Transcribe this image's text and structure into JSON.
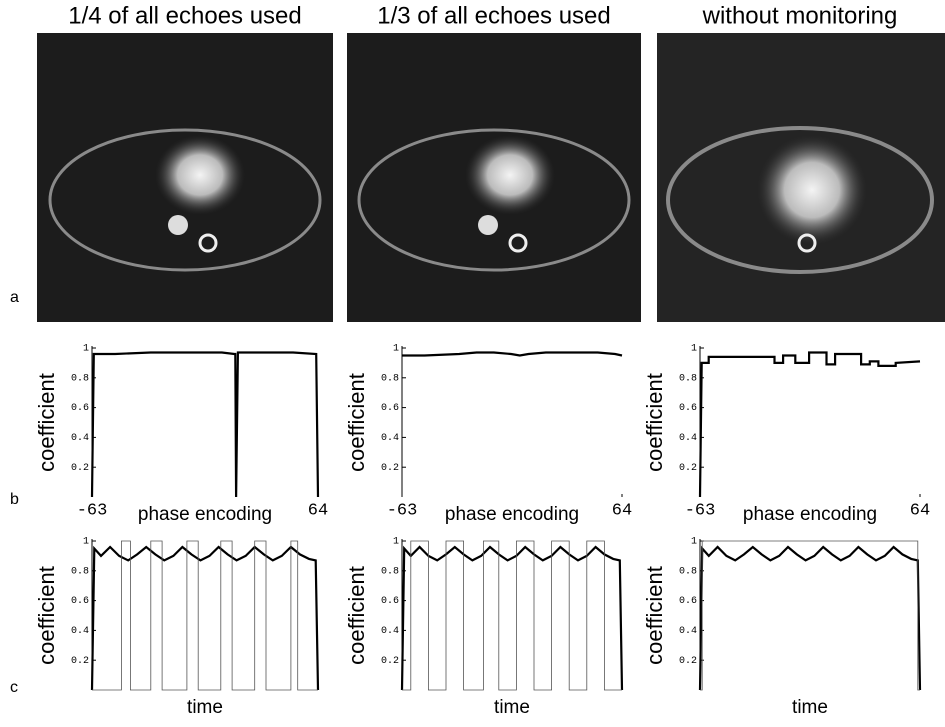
{
  "column_titles": [
    "1/4 of all echoes used",
    "1/3 of all echoes used",
    "without monitoring"
  ],
  "panel_labels": [
    "a",
    "b",
    "c"
  ],
  "chart_data": [
    {
      "type": "line",
      "ylabel": "coefficient",
      "xlabel": "phase encoding",
      "xlim": [
        -63,
        64
      ],
      "ylim": [
        0,
        1
      ],
      "xticks": [
        -63,
        64
      ],
      "yticks": [
        0.2,
        0.4,
        0.6,
        0.8,
        1
      ],
      "series": [
        {
          "color": "#000000",
          "x": [
            -63,
            -62,
            -50,
            -30,
            -10,
            10,
            17,
            17.5,
            18,
            19,
            30,
            50,
            63,
            64
          ],
          "values": [
            0,
            0.96,
            0.96,
            0.97,
            0.97,
            0.97,
            0.96,
            0.96,
            0,
            0.97,
            0.97,
            0.97,
            0.96,
            0
          ]
        }
      ]
    },
    {
      "type": "line",
      "ylabel": "coefficient",
      "xlabel": "phase encoding",
      "xlim": [
        -63,
        64
      ],
      "ylim": [
        0,
        1
      ],
      "xticks": [
        -63,
        64
      ],
      "yticks": [
        0.2,
        0.4,
        0.6,
        0.8,
        1
      ],
      "series": [
        {
          "color": "#000000",
          "x": [
            -63,
            -50,
            -30,
            -20,
            -10,
            0,
            5,
            10,
            20,
            30,
            40,
            50,
            60,
            64
          ],
          "values": [
            0.95,
            0.95,
            0.96,
            0.97,
            0.97,
            0.96,
            0.95,
            0.96,
            0.97,
            0.97,
            0.97,
            0.97,
            0.96,
            0.95
          ]
        }
      ]
    },
    {
      "type": "line",
      "ylabel": "coefficient",
      "xlabel": "phase encoding",
      "xlim": [
        -63,
        64
      ],
      "ylim": [
        0,
        1
      ],
      "xticks": [
        -63,
        64
      ],
      "yticks": [
        0.2,
        0.4,
        0.6,
        0.8,
        1
      ],
      "series": [
        {
          "color": "#000000",
          "x": [
            -63,
            -62,
            -58,
            -58,
            -20,
            -20,
            -15,
            -15,
            -8,
            -8,
            0,
            0,
            10,
            10,
            15,
            15,
            30,
            30,
            35,
            35,
            40,
            40,
            50,
            50,
            64
          ],
          "values": [
            0,
            0.9,
            0.9,
            0.94,
            0.94,
            0.9,
            0.9,
            0.95,
            0.95,
            0.9,
            0.9,
            0.97,
            0.97,
            0.89,
            0.89,
            0.96,
            0.96,
            0.89,
            0.89,
            0.91,
            0.91,
            0.88,
            0.88,
            0.9,
            0.91
          ]
        }
      ]
    },
    {
      "type": "line",
      "ylabel": "coefficient",
      "xlabel": "time",
      "xlim": [
        0,
        100
      ],
      "ylim": [
        0,
        1
      ],
      "yticks": [
        0.2,
        0.4,
        0.6,
        0.8,
        1
      ],
      "series": [
        {
          "color": "#000000",
          "x": [
            0,
            1,
            4,
            8,
            12,
            16,
            20,
            24,
            28,
            32,
            36,
            40,
            44,
            48,
            52,
            56,
            60,
            64,
            68,
            72,
            76,
            80,
            84,
            88,
            92,
            96,
            99,
            100
          ],
          "values": [
            0,
            0.95,
            0.9,
            0.96,
            0.9,
            0.87,
            0.91,
            0.96,
            0.91,
            0.87,
            0.9,
            0.96,
            0.91,
            0.87,
            0.9,
            0.96,
            0.91,
            0.87,
            0.9,
            0.96,
            0.91,
            0.87,
            0.9,
            0.96,
            0.91,
            0.88,
            0.87,
            0
          ]
        },
        {
          "color": "#555555",
          "x": [
            0,
            13,
            13,
            17,
            17,
            26,
            26,
            31,
            31,
            42,
            42,
            47,
            47,
            57,
            57,
            62,
            62,
            72,
            72,
            77,
            77,
            88,
            88,
            91,
            91,
            100
          ],
          "values": [
            0,
            0,
            1,
            1,
            0,
            0,
            1,
            1,
            0,
            0,
            1,
            1,
            0,
            0,
            1,
            1,
            0,
            0,
            1,
            1,
            0,
            0,
            1,
            1,
            0,
            0
          ]
        }
      ]
    },
    {
      "type": "line",
      "ylabel": "coefficient",
      "xlabel": "time",
      "xlim": [
        0,
        100
      ],
      "ylim": [
        0,
        1
      ],
      "yticks": [
        0.2,
        0.4,
        0.6,
        0.8,
        1
      ],
      "series": [
        {
          "color": "#000000",
          "x": [
            0,
            1,
            4,
            8,
            12,
            16,
            20,
            24,
            28,
            32,
            36,
            40,
            44,
            48,
            52,
            56,
            60,
            64,
            68,
            72,
            76,
            80,
            84,
            88,
            92,
            96,
            99,
            100
          ],
          "values": [
            0,
            0.95,
            0.9,
            0.96,
            0.9,
            0.87,
            0.91,
            0.96,
            0.91,
            0.87,
            0.9,
            0.96,
            0.91,
            0.87,
            0.9,
            0.96,
            0.91,
            0.87,
            0.9,
            0.96,
            0.91,
            0.87,
            0.9,
            0.96,
            0.91,
            0.88,
            0.87,
            0
          ]
        },
        {
          "color": "#555555",
          "x": [
            0,
            4,
            4,
            12,
            12,
            20,
            20,
            28,
            28,
            37,
            37,
            44,
            44,
            52,
            52,
            60,
            60,
            68,
            68,
            76,
            76,
            84,
            84,
            92,
            92,
            100
          ],
          "values": [
            0,
            0,
            1,
            1,
            0,
            0,
            1,
            1,
            0,
            0,
            1,
            1,
            0,
            0,
            1,
            1,
            0,
            0,
            1,
            1,
            0,
            0,
            1,
            1,
            0,
            0
          ]
        }
      ]
    },
    {
      "type": "line",
      "ylabel": "coefficient",
      "xlabel": "time",
      "xlim": [
        0,
        100
      ],
      "ylim": [
        0,
        1
      ],
      "yticks": [
        0.2,
        0.4,
        0.6,
        0.8,
        1
      ],
      "series": [
        {
          "color": "#000000",
          "x": [
            0,
            1,
            4,
            8,
            12,
            16,
            20,
            24,
            28,
            32,
            36,
            40,
            44,
            48,
            52,
            56,
            60,
            64,
            68,
            72,
            76,
            80,
            84,
            88,
            92,
            96,
            99,
            100
          ],
          "values": [
            0,
            0.95,
            0.9,
            0.96,
            0.9,
            0.87,
            0.91,
            0.96,
            0.91,
            0.87,
            0.9,
            0.96,
            0.91,
            0.87,
            0.9,
            0.96,
            0.91,
            0.87,
            0.9,
            0.96,
            0.91,
            0.87,
            0.9,
            0.96,
            0.91,
            0.88,
            0.87,
            0
          ]
        },
        {
          "color": "#555555",
          "x": [
            0,
            1,
            1,
            99,
            99,
            100
          ],
          "values": [
            0,
            0,
            1,
            1,
            0,
            0
          ]
        }
      ]
    }
  ]
}
